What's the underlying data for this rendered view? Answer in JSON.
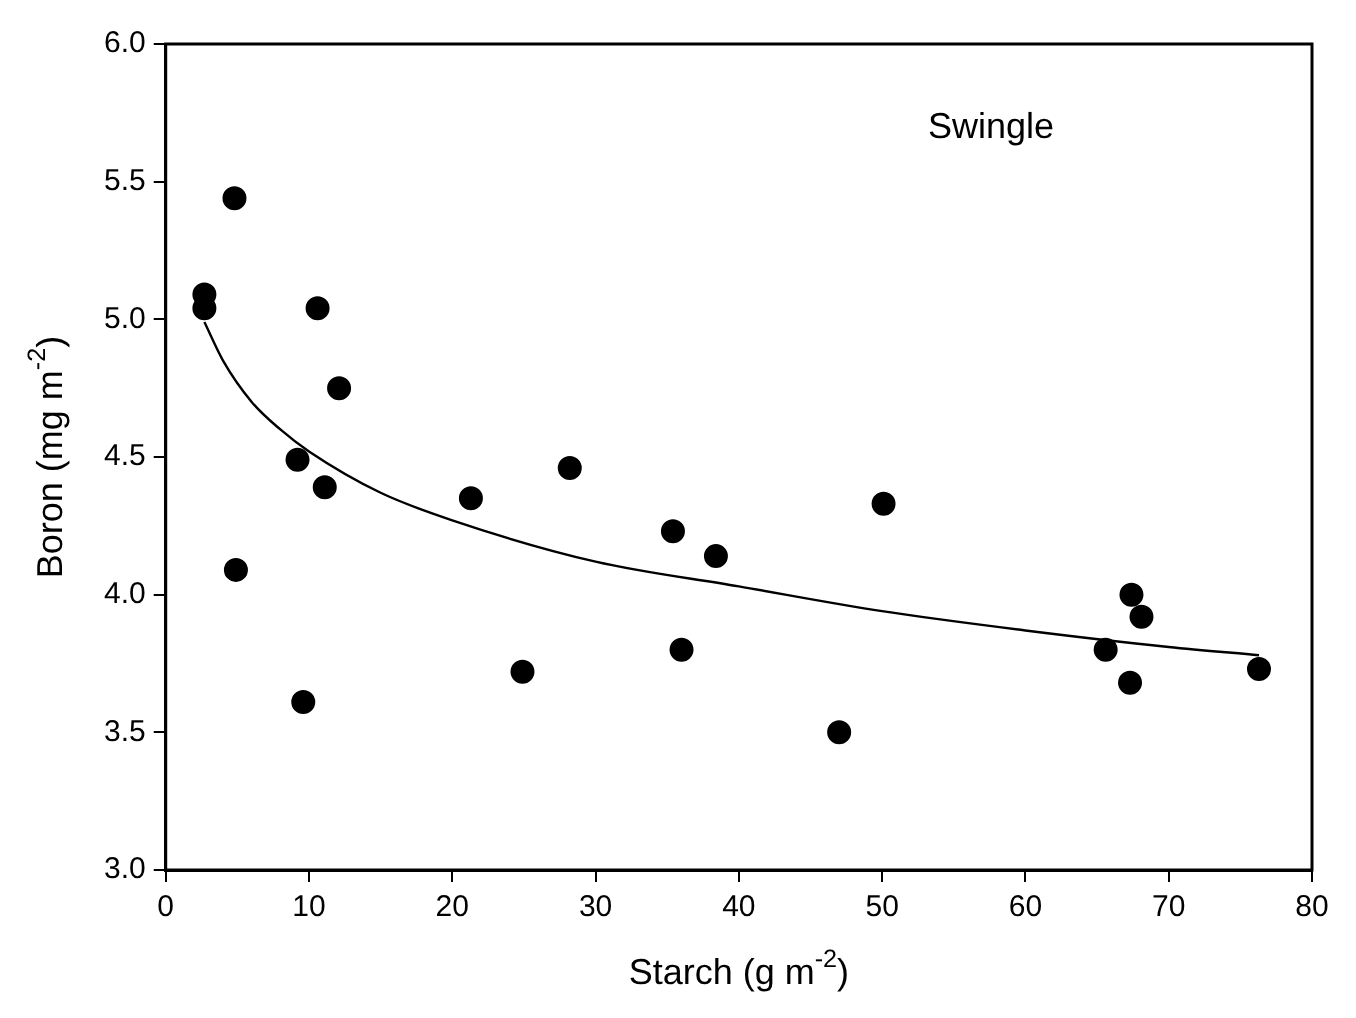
{
  "chart_data": {
    "type": "scatter",
    "xlabel": "Starch (g m$^{-2}$)",
    "ylabel": "Boron (mg m$^{-2}$)",
    "annotations": [
      "Swingle"
    ],
    "xlim": [
      0,
      80
    ],
    "xticks": [
      0,
      10,
      20,
      30,
      40,
      50,
      60,
      70,
      80
    ],
    "ylim": [
      3.0,
      6.0
    ],
    "yticks": [
      {
        "value": 3.0,
        "label": "3.0"
      },
      {
        "value": 3.5,
        "label": "3.5"
      },
      {
        "value": 4.0,
        "label": "4.0"
      },
      {
        "value": 4.5,
        "label": "4.5"
      },
      {
        "value": 5.0,
        "label": "5.0"
      },
      {
        "value": 5.5,
        "label": "5.5"
      },
      {
        "value": 6.0,
        "label": "6.0"
      }
    ],
    "grid": false,
    "legend": false,
    "marker": "circle",
    "series": [
      {
        "color": "#000000",
        "x": [
          2.7,
          2.7,
          4.8,
          4.9,
          9.2,
          9.6,
          10.6,
          11.1,
          12.1,
          21.3,
          24.9,
          28.2,
          35.4,
          36.0,
          38.4,
          47.0,
          50.1,
          65.6,
          67.3,
          67.4,
          68.1,
          76.3
        ],
        "values": [
          5.09,
          5.04,
          5.44,
          4.09,
          4.49,
          3.61,
          5.04,
          4.39,
          4.75,
          4.35,
          3.72,
          4.46,
          4.23,
          3.8,
          4.14,
          3.5,
          4.33,
          3.8,
          3.68,
          4.0,
          3.92,
          3.73
        ]
      },
      {
        "type": "line",
        "color": "#000000",
        "marker": "none",
        "x": [
          2.7,
          4,
          6,
          8,
          10,
          15,
          20,
          30,
          40,
          50,
          60,
          70,
          76.3
        ],
        "values": [
          4.99,
          4.85,
          4.7,
          4.6,
          4.52,
          4.37,
          4.27,
          4.12,
          4.03,
          3.94,
          3.87,
          3.81,
          3.78
        ]
      }
    ]
  }
}
